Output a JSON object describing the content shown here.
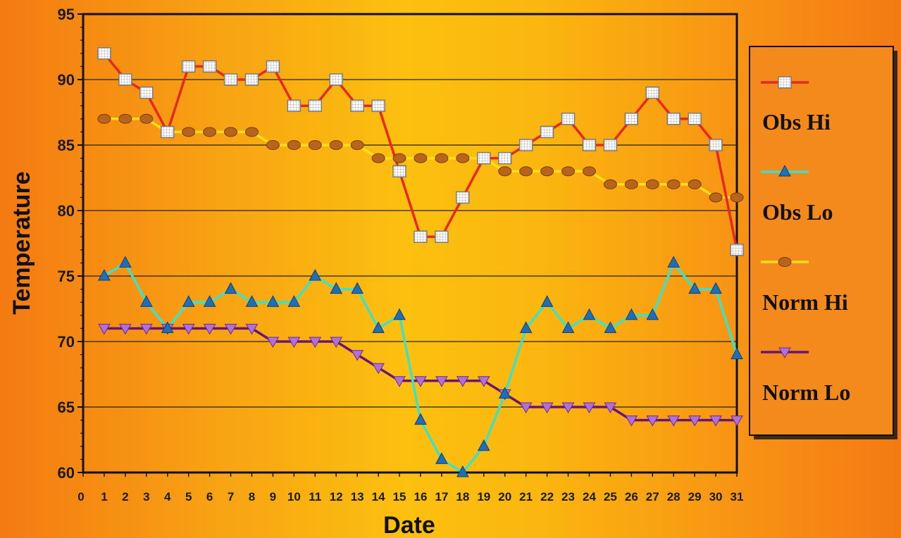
{
  "chart_data": {
    "type": "line",
    "title": "",
    "xlabel": "Date",
    "ylabel": "Temperature",
    "xlim": [
      0,
      31
    ],
    "ylim": [
      60,
      95
    ],
    "x_ticks": [
      0,
      1,
      2,
      3,
      4,
      5,
      6,
      7,
      8,
      9,
      10,
      11,
      12,
      13,
      14,
      15,
      16,
      17,
      18,
      19,
      20,
      21,
      22,
      23,
      24,
      25,
      26,
      27,
      28,
      29,
      30,
      31
    ],
    "y_ticks": [
      60,
      65,
      70,
      75,
      80,
      85,
      90,
      95
    ],
    "grid": "horizontal",
    "legend_position": "right",
    "x": [
      1,
      2,
      3,
      4,
      5,
      6,
      7,
      8,
      9,
      10,
      11,
      12,
      13,
      14,
      15,
      16,
      17,
      18,
      19,
      20,
      21,
      22,
      23,
      24,
      25,
      26,
      27,
      28,
      29,
      30,
      31
    ],
    "series": [
      {
        "name": "Obs Hi",
        "color": "#e8281e",
        "marker": "square-grid",
        "values": [
          92,
          90,
          89,
          86,
          91,
          91,
          90,
          90,
          91,
          88,
          88,
          90,
          88,
          88,
          83,
          78,
          78,
          81,
          84,
          84,
          85,
          86,
          87,
          85,
          85,
          87,
          89,
          87,
          87,
          85,
          77
        ]
      },
      {
        "name": "Obs Lo",
        "color": "#40e0c8",
        "marker": "triangle-up",
        "values": [
          75,
          76,
          73,
          71,
          73,
          73,
          74,
          73,
          73,
          73,
          75,
          74,
          74,
          71,
          72,
          64,
          61,
          60,
          62,
          66,
          71,
          73,
          71,
          72,
          71,
          72,
          72,
          76,
          74,
          74,
          69
        ]
      },
      {
        "name": "Norm Hi",
        "color": "#ffe01a",
        "marker": "circle",
        "values": [
          87,
          87,
          87,
          86,
          86,
          86,
          86,
          86,
          85,
          85,
          85,
          85,
          85,
          84,
          84,
          84,
          84,
          84,
          84,
          83,
          83,
          83,
          83,
          83,
          82,
          82,
          82,
          82,
          82,
          81,
          81
        ]
      },
      {
        "name": "Norm Lo",
        "color": "#6a1670",
        "marker": "triangle-down",
        "values": [
          71,
          71,
          71,
          71,
          71,
          71,
          71,
          71,
          70,
          70,
          70,
          70,
          69,
          68,
          67,
          67,
          67,
          67,
          67,
          66,
          65,
          65,
          65,
          65,
          65,
          64,
          64,
          64,
          64,
          64,
          64
        ]
      }
    ]
  }
}
